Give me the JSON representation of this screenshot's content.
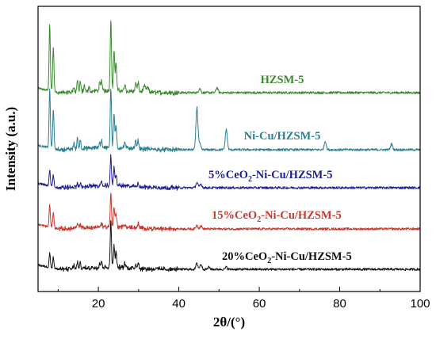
{
  "chart_data": {
    "type": "line",
    "title": "",
    "xlabel": "2θ/(°)",
    "ylabel": "Intensity (a.u.)",
    "xlim": [
      5,
      100
    ],
    "x_ticks": [
      "20",
      "40",
      "60",
      "80",
      "100"
    ],
    "x_tick_values": [
      20,
      40,
      60,
      80,
      100
    ],
    "grid": false,
    "legend": "inline labels",
    "series": [
      {
        "name": "HZSM-5",
        "color": "#3a8a2e",
        "label_pos": "upper-center",
        "peaks": [
          [
            7.9,
            90
          ],
          [
            8.8,
            62
          ],
          [
            13.9,
            8
          ],
          [
            14.8,
            16
          ],
          [
            15.5,
            14
          ],
          [
            16.5,
            7
          ],
          [
            17.7,
            5
          ],
          [
            20.3,
            10
          ],
          [
            20.8,
            14
          ],
          [
            23.1,
            98
          ],
          [
            23.9,
            56
          ],
          [
            24.4,
            38
          ],
          [
            26.6,
            8
          ],
          [
            29.3,
            12
          ],
          [
            29.9,
            14
          ],
          [
            31.5,
            8
          ],
          [
            32.3,
            6
          ],
          [
            45.2,
            6
          ],
          [
            49.5,
            7
          ]
        ]
      },
      {
        "name": "Ni-Cu/HZSM-5",
        "color": "#2e7f8f",
        "label_pos": "upper-center",
        "peaks": [
          [
            7.9,
            80
          ],
          [
            8.8,
            55
          ],
          [
            13.9,
            9
          ],
          [
            14.8,
            14
          ],
          [
            15.5,
            12
          ],
          [
            20.3,
            8
          ],
          [
            20.8,
            10
          ],
          [
            23.1,
            82
          ],
          [
            23.9,
            46
          ],
          [
            24.4,
            30
          ],
          [
            26.6,
            8
          ],
          [
            29.3,
            10
          ],
          [
            29.9,
            11
          ],
          [
            44.5,
            58
          ],
          [
            45.2,
            8
          ],
          [
            51.8,
            28
          ],
          [
            76.4,
            12
          ],
          [
            92.9,
            8
          ]
        ]
      },
      {
        "name": "5%CeO2-Ni-Cu/HZSM-5",
        "color": "#1f1f8f",
        "label_pos": "right",
        "peaks": [
          [
            7.9,
            22
          ],
          [
            8.8,
            16
          ],
          [
            14.8,
            5
          ],
          [
            15.5,
            4
          ],
          [
            20.8,
            4
          ],
          [
            23.1,
            40
          ],
          [
            23.9,
            24
          ],
          [
            24.4,
            16
          ],
          [
            29.9,
            5
          ],
          [
            44.5,
            7
          ],
          [
            45.5,
            5
          ]
        ]
      },
      {
        "name": "15%CeO2-Ni-Cu/HZSM-5",
        "color": "#c8382e",
        "label_pos": "right",
        "peaks": [
          [
            7.9,
            30
          ],
          [
            8.8,
            22
          ],
          [
            14.8,
            6
          ],
          [
            15.5,
            5
          ],
          [
            20.8,
            6
          ],
          [
            23.1,
            46
          ],
          [
            23.9,
            28
          ],
          [
            24.4,
            18
          ],
          [
            26.6,
            4
          ],
          [
            29.9,
            6
          ],
          [
            44.5,
            5
          ],
          [
            45.5,
            4
          ]
        ]
      },
      {
        "name": "20%CeO2-Ni-Cu/HZSM-5",
        "color": "#111111",
        "label_pos": "right",
        "peaks": [
          [
            7.9,
            20
          ],
          [
            8.8,
            15
          ],
          [
            13.9,
            5
          ],
          [
            14.8,
            8
          ],
          [
            15.5,
            7
          ],
          [
            20.3,
            6
          ],
          [
            20.8,
            8
          ],
          [
            23.1,
            62
          ],
          [
            23.9,
            30
          ],
          [
            24.4,
            20
          ],
          [
            26.6,
            6
          ],
          [
            29.3,
            6
          ],
          [
            29.9,
            8
          ],
          [
            44.5,
            8
          ],
          [
            45.5,
            7
          ],
          [
            47.5,
            3
          ],
          [
            51.8,
            3
          ]
        ]
      }
    ]
  }
}
